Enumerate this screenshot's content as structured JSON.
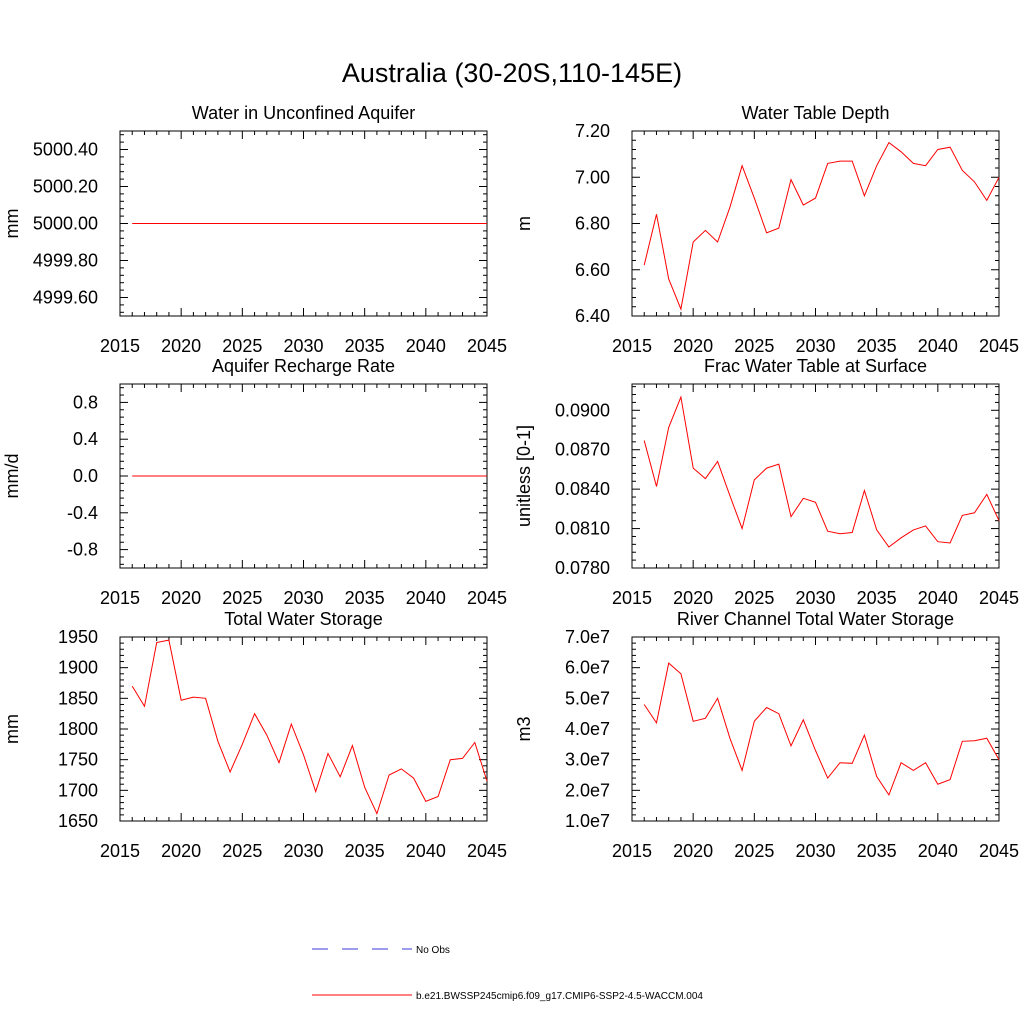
{
  "page_title": "Australia (30-20S,110-145E)",
  "chart_data": [
    {
      "type": "line",
      "title": "Water in Unconfined Aquifer",
      "ylabel": "mm",
      "xlim": [
        2015,
        2045
      ],
      "ylim": [
        4999.5,
        5000.5
      ],
      "x_ticks": [
        "2015",
        "2020",
        "2025",
        "2030",
        "2035",
        "2040",
        "2045"
      ],
      "y_ticks": [
        {
          "value": 4999.6,
          "label": "4999.60"
        },
        {
          "value": 4999.8,
          "label": "4999.80"
        },
        {
          "value": 5000.0,
          "label": "5000.00"
        },
        {
          "value": 5000.2,
          "label": "5000.20"
        },
        {
          "value": 5000.4,
          "label": "5000.40"
        }
      ],
      "x": [
        2016,
        2017,
        2018,
        2019,
        2020,
        2021,
        2022,
        2023,
        2024,
        2025,
        2026,
        2027,
        2028,
        2029,
        2030,
        2031,
        2032,
        2033,
        2034,
        2035,
        2036,
        2037,
        2038,
        2039,
        2040,
        2041,
        2042,
        2043,
        2044,
        2045
      ],
      "series": [
        {
          "values": [
            5000,
            5000,
            5000,
            5000,
            5000,
            5000,
            5000,
            5000,
            5000,
            5000,
            5000,
            5000,
            5000,
            5000,
            5000,
            5000,
            5000,
            5000,
            5000,
            5000,
            5000,
            5000,
            5000,
            5000,
            5000,
            5000,
            5000,
            5000,
            5000,
            5000
          ],
          "color": "#ff0000"
        }
      ]
    },
    {
      "type": "line",
      "title": "Water Table Depth",
      "ylabel": "m",
      "xlim": [
        2015,
        2045
      ],
      "ylim": [
        6.4,
        7.2
      ],
      "x_ticks": [
        "2015",
        "2020",
        "2025",
        "2030",
        "2035",
        "2040",
        "2045"
      ],
      "y_ticks": [
        {
          "value": 6.4,
          "label": "6.40"
        },
        {
          "value": 6.6,
          "label": "6.60"
        },
        {
          "value": 6.8,
          "label": "6.80"
        },
        {
          "value": 7.0,
          "label": "7.00"
        },
        {
          "value": 7.2,
          "label": "7.20"
        }
      ],
      "x": [
        2016,
        2017,
        2018,
        2019,
        2020,
        2021,
        2022,
        2023,
        2024,
        2025,
        2026,
        2027,
        2028,
        2029,
        2030,
        2031,
        2032,
        2033,
        2034,
        2035,
        2036,
        2037,
        2038,
        2039,
        2040,
        2041,
        2042,
        2043,
        2044,
        2045
      ],
      "series": [
        {
          "values": [
            6.62,
            6.84,
            6.56,
            6.43,
            6.72,
            6.77,
            6.72,
            6.87,
            7.05,
            6.91,
            6.76,
            6.78,
            6.99,
            6.88,
            6.91,
            7.06,
            7.07,
            7.07,
            6.92,
            7.05,
            7.15,
            7.11,
            7.06,
            7.05,
            7.12,
            7.13,
            7.03,
            6.98,
            6.9,
            7.0
          ],
          "color": "#ff0000"
        }
      ]
    },
    {
      "type": "line",
      "title": "Aquifer Recharge Rate",
      "ylabel": "mm/d",
      "xlim": [
        2015,
        2045
      ],
      "ylim": [
        -1.0,
        1.0
      ],
      "x_ticks": [
        "2015",
        "2020",
        "2025",
        "2030",
        "2035",
        "2040",
        "2045"
      ],
      "y_ticks": [
        {
          "value": -0.8,
          "label": "-0.8"
        },
        {
          "value": -0.4,
          "label": "-0.4"
        },
        {
          "value": 0.0,
          "label": "0.0"
        },
        {
          "value": 0.4,
          "label": "0.4"
        },
        {
          "value": 0.8,
          "label": "0.8"
        }
      ],
      "x": [
        2016,
        2017,
        2018,
        2019,
        2020,
        2021,
        2022,
        2023,
        2024,
        2025,
        2026,
        2027,
        2028,
        2029,
        2030,
        2031,
        2032,
        2033,
        2034,
        2035,
        2036,
        2037,
        2038,
        2039,
        2040,
        2041,
        2042,
        2043,
        2044,
        2045
      ],
      "series": [
        {
          "values": [
            0,
            0,
            0,
            0,
            0,
            0,
            0,
            0,
            0,
            0,
            0,
            0,
            0,
            0,
            0,
            0,
            0,
            0,
            0,
            0,
            0,
            0,
            0,
            0,
            0,
            0,
            0,
            0,
            0,
            0
          ],
          "color": "#ff0000"
        }
      ]
    },
    {
      "type": "line",
      "title": "Frac Water Table at Surface",
      "ylabel": "unitless [0-1]",
      "xlim": [
        2015,
        2045
      ],
      "ylim": [
        0.078,
        0.092
      ],
      "x_ticks": [
        "2015",
        "2020",
        "2025",
        "2030",
        "2035",
        "2040",
        "2045"
      ],
      "y_ticks": [
        {
          "value": 0.078,
          "label": "0.0780"
        },
        {
          "value": 0.081,
          "label": "0.0810"
        },
        {
          "value": 0.084,
          "label": "0.0840"
        },
        {
          "value": 0.087,
          "label": "0.0870"
        },
        {
          "value": 0.09,
          "label": "0.0900"
        }
      ],
      "x": [
        2016,
        2017,
        2018,
        2019,
        2020,
        2021,
        2022,
        2023,
        2024,
        2025,
        2026,
        2027,
        2028,
        2029,
        2030,
        2031,
        2032,
        2033,
        2034,
        2035,
        2036,
        2037,
        2038,
        2039,
        2040,
        2041,
        2042,
        2043,
        2044,
        2045
      ],
      "series": [
        {
          "values": [
            0.0877,
            0.0842,
            0.0887,
            0.091,
            0.0856,
            0.0848,
            0.0861,
            0.0835,
            0.081,
            0.0847,
            0.0856,
            0.0859,
            0.0819,
            0.0833,
            0.083,
            0.0808,
            0.0806,
            0.0807,
            0.0839,
            0.0809,
            0.0796,
            0.0803,
            0.0809,
            0.0812,
            0.08,
            0.0799,
            0.082,
            0.0822,
            0.0836,
            0.0816
          ],
          "color": "#ff0000"
        }
      ]
    },
    {
      "type": "line",
      "title": "Total Water Storage",
      "ylabel": "mm",
      "xlim": [
        2015,
        2045
      ],
      "ylim": [
        1650,
        1950
      ],
      "x_ticks": [
        "2015",
        "2020",
        "2025",
        "2030",
        "2035",
        "2040",
        "2045"
      ],
      "y_ticks": [
        {
          "value": 1650,
          "label": "1650"
        },
        {
          "value": 1700,
          "label": "1700"
        },
        {
          "value": 1750,
          "label": "1750"
        },
        {
          "value": 1800,
          "label": "1800"
        },
        {
          "value": 1850,
          "label": "1850"
        },
        {
          "value": 1900,
          "label": "1900"
        },
        {
          "value": 1950,
          "label": "1950"
        }
      ],
      "x": [
        2016,
        2017,
        2018,
        2019,
        2020,
        2021,
        2022,
        2023,
        2024,
        2025,
        2026,
        2027,
        2028,
        2029,
        2030,
        2031,
        2032,
        2033,
        2034,
        2035,
        2036,
        2037,
        2038,
        2039,
        2040,
        2041,
        2042,
        2043,
        2044,
        2045
      ],
      "series": [
        {
          "values": [
            1870,
            1837,
            1941,
            1945,
            1847,
            1852,
            1850,
            1780,
            1730,
            1775,
            1825,
            1790,
            1745,
            1808,
            1758,
            1698,
            1760,
            1722,
            1773,
            1705,
            1662,
            1725,
            1735,
            1720,
            1682,
            1690,
            1750,
            1752,
            1778,
            1715
          ],
          "color": "#ff0000"
        }
      ]
    },
    {
      "type": "line",
      "title": "River Channel Total Water Storage",
      "ylabel": "m3",
      "xlim": [
        2015,
        2045
      ],
      "ylim": [
        10000000,
        70000000
      ],
      "x_ticks": [
        "2015",
        "2020",
        "2025",
        "2030",
        "2035",
        "2040",
        "2045"
      ],
      "y_ticks": [
        {
          "value": 10000000,
          "label": "1.0e7"
        },
        {
          "value": 20000000,
          "label": "2.0e7"
        },
        {
          "value": 30000000,
          "label": "3.0e7"
        },
        {
          "value": 40000000,
          "label": "4.0e7"
        },
        {
          "value": 50000000,
          "label": "5.0e7"
        },
        {
          "value": 60000000,
          "label": "6.0e7"
        },
        {
          "value": 70000000,
          "label": "7.0e7"
        }
      ],
      "x": [
        2016,
        2017,
        2018,
        2019,
        2020,
        2021,
        2022,
        2023,
        2024,
        2025,
        2026,
        2027,
        2028,
        2029,
        2030,
        2031,
        2032,
        2033,
        2034,
        2035,
        2036,
        2037,
        2038,
        2039,
        2040,
        2041,
        2042,
        2043,
        2044,
        2045
      ],
      "series": [
        {
          "values": [
            48000000,
            42000000,
            61500000,
            58000000,
            42500000,
            43500000,
            50000000,
            37000000,
            26500000,
            42500000,
            47000000,
            45000000,
            34500000,
            43000000,
            33000000,
            24000000,
            29000000,
            28800000,
            38000000,
            24500000,
            18500000,
            29000000,
            26500000,
            29000000,
            22000000,
            23500000,
            36000000,
            36200000,
            37000000,
            30000000
          ],
          "color": "#ff0000"
        }
      ]
    }
  ],
  "legend": {
    "items": [
      {
        "label": "No Obs",
        "color": "#3a3ad6",
        "style": "dashed"
      },
      {
        "label": "b.e21.BWSSP245cmip6.f09_g17.CMIP6-SSP2-4.5-WACCM.004",
        "color": "#ff0000",
        "style": "solid"
      }
    ]
  }
}
